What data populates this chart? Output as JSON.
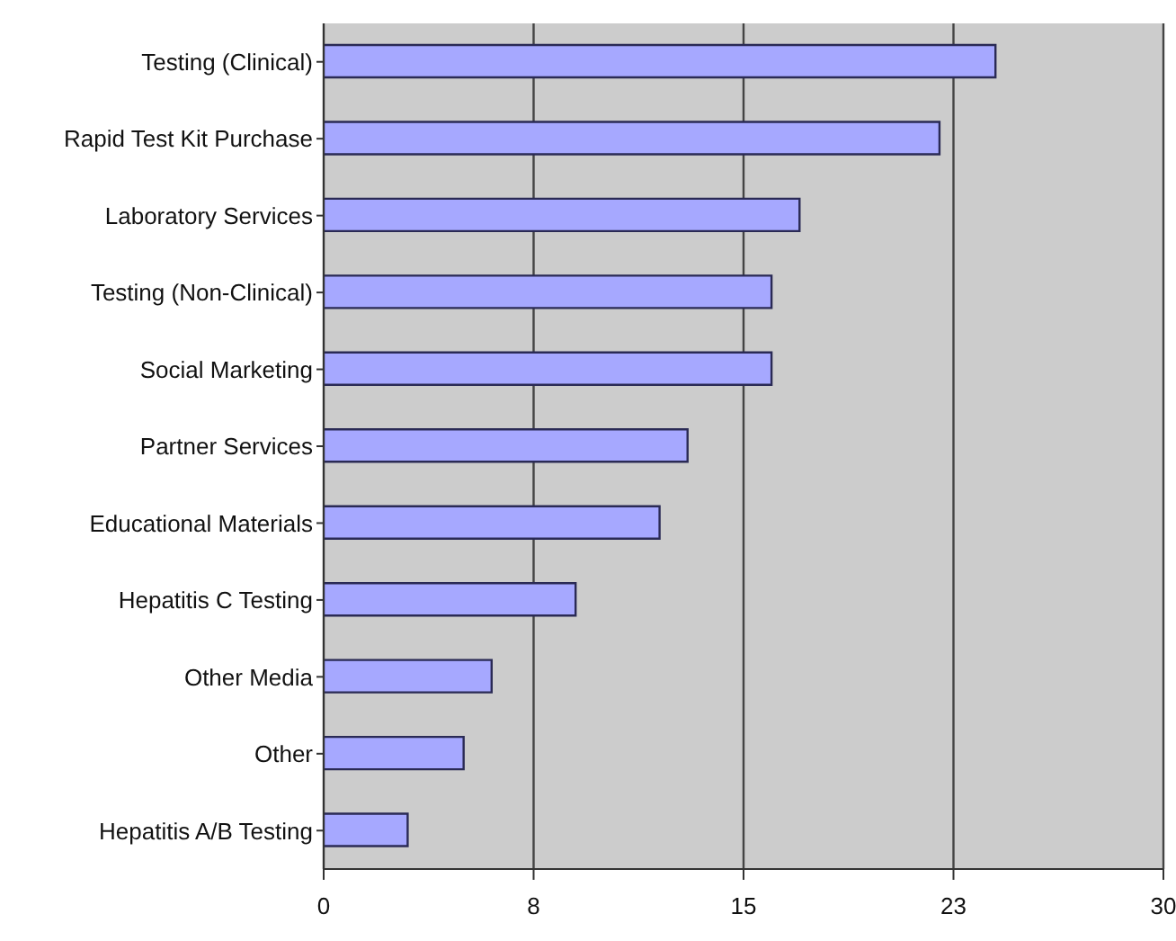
{
  "chart_data": {
    "type": "bar",
    "orientation": "horizontal",
    "categories": [
      "Testing (Clinical)",
      "Rapid Test Kit Purchase",
      "Laboratory Services",
      "Testing (Non-Clinical)",
      "Social Marketing",
      "Partner Services",
      "Educational Materials",
      "Hepatitis C Testing",
      "Other Media",
      "Other",
      "Hepatitis A/B Testing"
    ],
    "values": [
      24,
      22,
      17,
      16,
      16,
      13,
      12,
      9,
      6,
      5,
      3
    ],
    "color": "#a6a8ff",
    "xlim": [
      0,
      30
    ],
    "xticks": [
      0,
      {
        "value": 7.5,
        "label": "8"
      },
      15,
      {
        "value": 22.5,
        "label": "23"
      },
      30
    ],
    "grid": "x"
  }
}
